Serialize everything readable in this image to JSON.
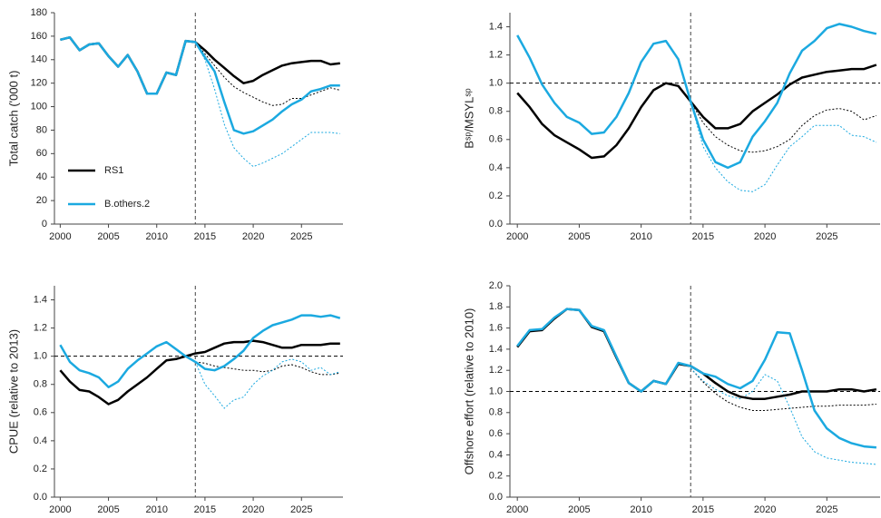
{
  "chart_data": [
    {
      "type": "line",
      "ylabel": "Total catch ('000 t)",
      "x": [
        2000,
        2001,
        2002,
        2003,
        2004,
        2005,
        2006,
        2007,
        2008,
        2009,
        2010,
        2011,
        2012,
        2013,
        2014,
        2015,
        2016,
        2017,
        2018,
        2019,
        2020,
        2021,
        2022,
        2023,
        2024,
        2025,
        2026,
        2027,
        2028,
        2029
      ],
      "xlim": [
        1999.4,
        2029.3
      ],
      "xticks": [
        2000,
        2005,
        2010,
        2015,
        2020,
        2025
      ],
      "ylim": [
        0,
        180
      ],
      "yticks": [
        0,
        20,
        40,
        60,
        80,
        100,
        120,
        140,
        160,
        180
      ],
      "vline": 2014,
      "legend": "lower left",
      "series": [
        {
          "name": "RS1",
          "color": "#000000",
          "style": "solid",
          "values": [
            157,
            159,
            148,
            153,
            154,
            143,
            134,
            144,
            130,
            111,
            111,
            129,
            127,
            156,
            155,
            148,
            140,
            133,
            126,
            120,
            122,
            127,
            131,
            135,
            137,
            138,
            139,
            139,
            136,
            137
          ]
        },
        {
          "name": "B.others.2",
          "color": "#1ba9e0",
          "style": "solid",
          "values": [
            157,
            159,
            148,
            153,
            154,
            143,
            134,
            144,
            130,
            111,
            111,
            129,
            127,
            156,
            155,
            142,
            130,
            104,
            80,
            77,
            79,
            84,
            89,
            96,
            102,
            106,
            113,
            115,
            118,
            118
          ]
        },
        {
          "color": "#000000",
          "style": "dotted",
          "values": [
            null,
            null,
            null,
            null,
            null,
            null,
            null,
            null,
            null,
            null,
            null,
            null,
            null,
            null,
            155,
            145,
            135,
            125,
            117,
            112,
            108,
            104,
            101,
            102,
            107,
            107,
            110,
            113,
            116,
            114
          ]
        },
        {
          "color": "#1ba9e0",
          "style": "dotted",
          "values": [
            null,
            null,
            null,
            null,
            null,
            null,
            null,
            null,
            null,
            null,
            null,
            null,
            null,
            null,
            155,
            140,
            115,
            85,
            65,
            56,
            49,
            52,
            56,
            60,
            66,
            72,
            78,
            78,
            78,
            77
          ]
        }
      ]
    },
    {
      "type": "line",
      "ylabel": "Bˢᵖ/MSYLˢᵖ",
      "x": [
        2000,
        2001,
        2002,
        2003,
        2004,
        2005,
        2006,
        2007,
        2008,
        2009,
        2010,
        2011,
        2012,
        2013,
        2014,
        2015,
        2016,
        2017,
        2018,
        2019,
        2020,
        2021,
        2022,
        2023,
        2024,
        2025,
        2026,
        2027,
        2028,
        2029
      ],
      "xlim": [
        1999.4,
        2029.3
      ],
      "xticks": [
        2000,
        2005,
        2010,
        2015,
        2020,
        2025
      ],
      "ylim": [
        0,
        1.5
      ],
      "yticks": [
        {
          "value": 0,
          "label": "0.0"
        },
        0.2,
        0.4,
        0.6,
        0.8,
        {
          "value": 1,
          "label": "1.0"
        },
        1.2,
        1.4
      ],
      "vline": 2014,
      "hline": 1,
      "series": [
        {
          "name": "RS1",
          "color": "#000000",
          "style": "solid",
          "values": [
            0.93,
            0.83,
            0.71,
            0.63,
            0.58,
            0.53,
            0.47,
            0.48,
            0.56,
            0.68,
            0.83,
            0.95,
            1.0,
            0.98,
            0.87,
            0.76,
            0.68,
            0.68,
            0.71,
            0.8,
            0.86,
            0.92,
            0.99,
            1.04,
            1.06,
            1.08,
            1.09,
            1.1,
            1.1,
            1.13
          ]
        },
        {
          "name": "B.others.2",
          "color": "#1ba9e0",
          "style": "solid",
          "values": [
            1.34,
            1.18,
            0.99,
            0.86,
            0.76,
            0.72,
            0.64,
            0.65,
            0.76,
            0.93,
            1.15,
            1.28,
            1.3,
            1.17,
            0.87,
            0.6,
            0.44,
            0.4,
            0.44,
            0.62,
            0.73,
            0.86,
            1.07,
            1.23,
            1.3,
            1.39,
            1.42,
            1.4,
            1.37,
            1.35
          ]
        },
        {
          "color": "#000000",
          "style": "dotted",
          "values": [
            null,
            null,
            null,
            null,
            null,
            null,
            null,
            null,
            null,
            null,
            null,
            null,
            null,
            null,
            0.87,
            0.72,
            0.62,
            0.56,
            0.52,
            0.51,
            0.52,
            0.55,
            0.6,
            0.7,
            0.77,
            0.81,
            0.82,
            0.8,
            0.74,
            0.77
          ]
        },
        {
          "color": "#1ba9e0",
          "style": "dotted",
          "values": [
            null,
            null,
            null,
            null,
            null,
            null,
            null,
            null,
            null,
            null,
            null,
            null,
            null,
            null,
            0.87,
            0.55,
            0.4,
            0.3,
            0.24,
            0.23,
            0.28,
            0.42,
            0.55,
            0.62,
            0.7,
            0.7,
            0.7,
            0.63,
            0.62,
            0.58
          ]
        }
      ]
    },
    {
      "type": "line",
      "ylabel": "CPUE (relative to 2013)",
      "x": [
        2000,
        2001,
        2002,
        2003,
        2004,
        2005,
        2006,
        2007,
        2008,
        2009,
        2010,
        2011,
        2012,
        2013,
        2014,
        2015,
        2016,
        2017,
        2018,
        2019,
        2020,
        2021,
        2022,
        2023,
        2024,
        2025,
        2026,
        2027,
        2028,
        2029
      ],
      "xlim": [
        1999.4,
        2029.3
      ],
      "xticks": [
        2000,
        2005,
        2010,
        2015,
        2020,
        2025
      ],
      "ylim": [
        0,
        1.5
      ],
      "yticks": [
        {
          "value": 0,
          "label": "0.0"
        },
        0.2,
        0.4,
        0.6,
        0.8,
        {
          "value": 1,
          "label": "1.0"
        },
        1.2,
        1.4
      ],
      "vline": 2014,
      "hline": 1,
      "series": [
        {
          "name": "RS1",
          "color": "#000000",
          "style": "solid",
          "values": [
            0.9,
            0.82,
            0.76,
            0.75,
            0.71,
            0.66,
            0.69,
            0.75,
            0.8,
            0.85,
            0.91,
            0.97,
            0.98,
            1.0,
            1.02,
            1.03,
            1.06,
            1.09,
            1.1,
            1.1,
            1.11,
            1.1,
            1.08,
            1.06,
            1.06,
            1.08,
            1.08,
            1.08,
            1.09,
            1.09
          ]
        },
        {
          "name": "B.others.2",
          "color": "#1ba9e0",
          "style": "solid",
          "values": [
            1.08,
            0.96,
            0.9,
            0.88,
            0.85,
            0.78,
            0.82,
            0.91,
            0.97,
            1.02,
            1.07,
            1.1,
            1.05,
            1.0,
            0.96,
            0.91,
            0.9,
            0.93,
            0.98,
            1.04,
            1.13,
            1.18,
            1.22,
            1.24,
            1.26,
            1.29,
            1.29,
            1.28,
            1.29,
            1.27
          ]
        },
        {
          "color": "#000000",
          "style": "dotted",
          "values": [
            null,
            null,
            null,
            null,
            null,
            null,
            null,
            null,
            null,
            null,
            null,
            null,
            null,
            null,
            0.96,
            0.95,
            0.93,
            0.92,
            0.91,
            0.9,
            0.9,
            0.89,
            0.9,
            0.93,
            0.94,
            0.92,
            0.89,
            0.87,
            0.87,
            0.88
          ]
        },
        {
          "color": "#1ba9e0",
          "style": "dotted",
          "values": [
            null,
            null,
            null,
            null,
            null,
            null,
            null,
            null,
            null,
            null,
            null,
            null,
            null,
            null,
            0.96,
            0.8,
            0.72,
            0.63,
            0.69,
            0.71,
            0.8,
            0.86,
            0.9,
            0.96,
            0.98,
            0.96,
            0.9,
            0.92,
            0.87,
            0.89
          ]
        }
      ]
    },
    {
      "type": "line",
      "ylabel": "Offshore effort (relative to 2010)",
      "x": [
        2000,
        2001,
        2002,
        2003,
        2004,
        2005,
        2006,
        2007,
        2008,
        2009,
        2010,
        2011,
        2012,
        2013,
        2014,
        2015,
        2016,
        2017,
        2018,
        2019,
        2020,
        2021,
        2022,
        2023,
        2024,
        2025,
        2026,
        2027,
        2028,
        2029
      ],
      "xlim": [
        1999.4,
        2029.3
      ],
      "xticks": [
        2000,
        2005,
        2010,
        2015,
        2020,
        2025
      ],
      "ylim": [
        0,
        2
      ],
      "yticks": [
        {
          "value": 0,
          "label": "0.0"
        },
        0.2,
        0.4,
        0.6,
        0.8,
        {
          "value": 1,
          "label": "1.0"
        },
        1.2,
        1.4,
        1.6,
        1.8,
        {
          "value": 2,
          "label": "2.0"
        }
      ],
      "vline": 2014,
      "hline": 1,
      "series": [
        {
          "name": "RS1",
          "color": "#000000",
          "style": "solid",
          "values": [
            1.42,
            1.57,
            1.58,
            1.69,
            1.78,
            1.77,
            1.61,
            1.57,
            1.32,
            1.08,
            1.0,
            1.1,
            1.07,
            1.26,
            1.24,
            1.17,
            1.08,
            1.0,
            0.95,
            0.93,
            0.93,
            0.95,
            0.97,
            1.0,
            1.0,
            1.0,
            1.02,
            1.02,
            1.0,
            1.02
          ]
        },
        {
          "name": "B.others.2",
          "color": "#1ba9e0",
          "style": "solid",
          "values": [
            1.43,
            1.58,
            1.59,
            1.7,
            1.78,
            1.77,
            1.62,
            1.58,
            1.33,
            1.08,
            1.0,
            1.1,
            1.07,
            1.27,
            1.24,
            1.17,
            1.14,
            1.07,
            1.03,
            1.1,
            1.3,
            1.56,
            1.55,
            1.2,
            0.82,
            0.65,
            0.56,
            0.51,
            0.48,
            0.47
          ]
        },
        {
          "color": "#000000",
          "style": "dotted",
          "values": [
            null,
            null,
            null,
            null,
            null,
            null,
            null,
            null,
            null,
            null,
            null,
            null,
            null,
            null,
            1.22,
            1.09,
            0.98,
            0.9,
            0.85,
            0.82,
            0.82,
            0.83,
            0.84,
            0.85,
            0.86,
            0.86,
            0.87,
            0.87,
            0.87,
            0.88
          ]
        },
        {
          "color": "#1ba9e0",
          "style": "dotted",
          "values": [
            null,
            null,
            null,
            null,
            null,
            null,
            null,
            null,
            null,
            null,
            null,
            null,
            null,
            null,
            1.22,
            1.1,
            1.02,
            0.96,
            0.93,
            1.0,
            1.16,
            1.1,
            0.85,
            0.57,
            0.43,
            0.37,
            0.35,
            0.33,
            0.32,
            0.31
          ]
        }
      ]
    }
  ]
}
